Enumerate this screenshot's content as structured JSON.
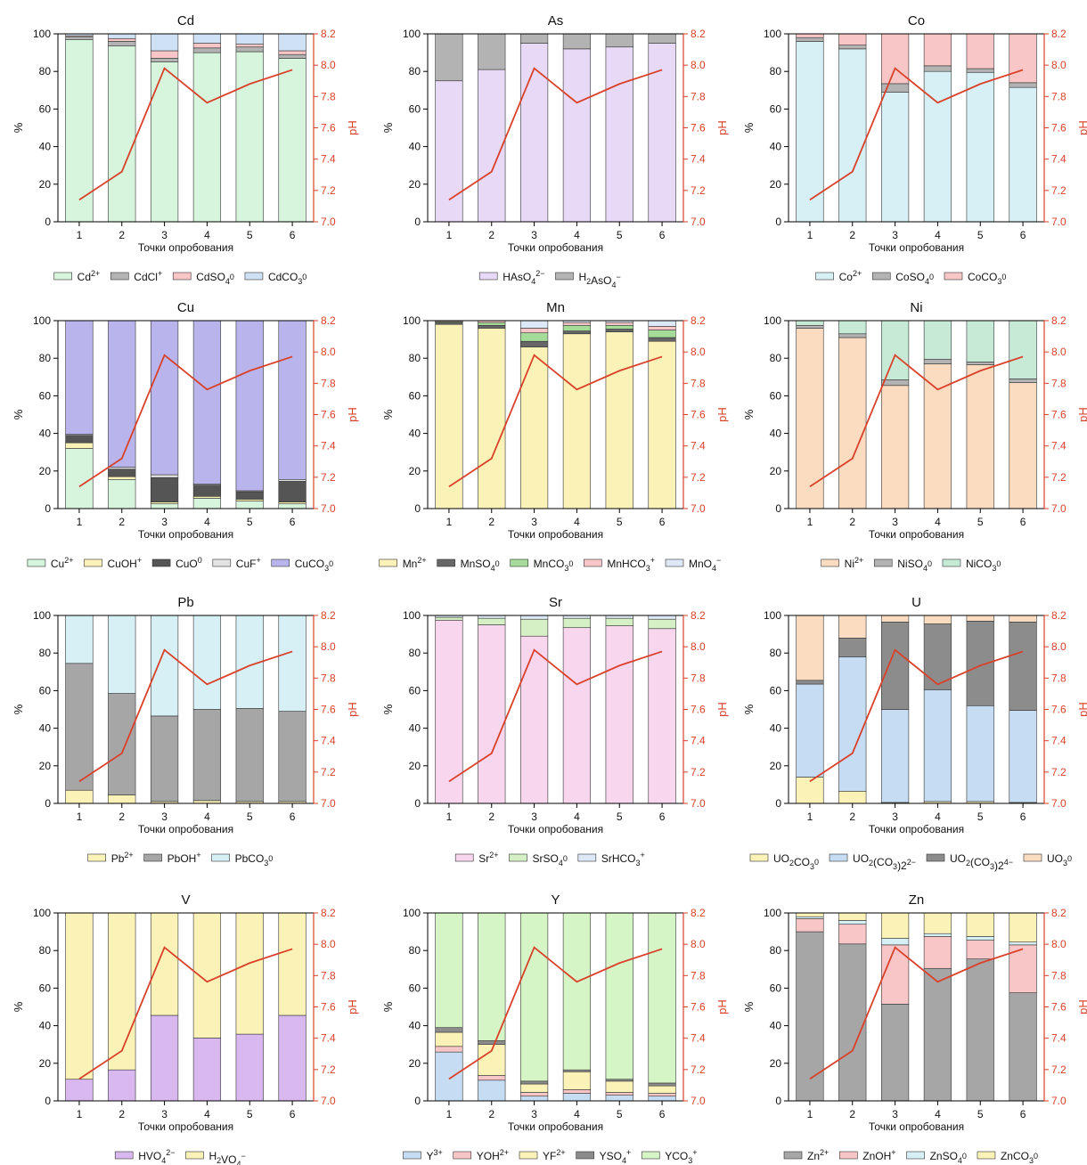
{
  "figure": {
    "x_label": "Точки опробования",
    "y_left_label": "%",
    "y_right_label": "pH",
    "x_ticks": [
      "1",
      "2",
      "3",
      "4",
      "5",
      "6"
    ],
    "y_left_ticks": [
      "0",
      "20",
      "40",
      "60",
      "80",
      "100"
    ],
    "y_right_ticks": [
      "7.0",
      "7.2",
      "7.4",
      "7.6",
      "7.8",
      "8.0",
      "8.2"
    ],
    "ph_color": "#d9412a"
  },
  "chart_data": [
    {
      "type": "bar",
      "stacked": true,
      "title": "Cd",
      "categories": [
        "1",
        "2",
        "3",
        "4",
        "5",
        "6"
      ],
      "ylim": [
        0,
        100
      ],
      "y2lim": [
        7.0,
        8.2
      ],
      "series": [
        {
          "name": "Cd2+",
          "label": [
            "Cd",
            "2+",
            ""
          ],
          "color": "#d6f5dc",
          "values": [
            97,
            93.5,
            85,
            90,
            90.5,
            87
          ]
        },
        {
          "name": "CdCl+",
          "label": [
            "CdCl",
            "+",
            ""
          ],
          "color": "#b3b3b3",
          "values": [
            1.5,
            2.5,
            2,
            2.5,
            2.5,
            2
          ]
        },
        {
          "name": "CdSO40",
          "label": [
            "CdSO",
            "",
            "4"
          ],
          "suffix": "0",
          "color": "#f8c6c6",
          "values": [
            0.5,
            1.5,
            4,
            2.5,
            1.5,
            2
          ]
        },
        {
          "name": "CdCO30",
          "label": [
            "CdCO",
            "",
            "3"
          ],
          "suffix": "0",
          "color": "#cfe2f5",
          "values": [
            1,
            2.5,
            9,
            5,
            5.5,
            9
          ]
        }
      ],
      "ph": [
        7.14,
        7.32,
        7.98,
        7.76,
        7.88,
        7.97
      ]
    },
    {
      "type": "bar",
      "stacked": true,
      "title": "As",
      "categories": [
        "1",
        "2",
        "3",
        "4",
        "5",
        "6"
      ],
      "ylim": [
        0,
        100
      ],
      "y2lim": [
        7.0,
        8.2
      ],
      "series": [
        {
          "name": "HAsO42-",
          "label": [
            "HAsO",
            "2−",
            "4"
          ],
          "color": "#e8d9f7",
          "values": [
            75,
            81,
            95,
            92,
            93,
            95
          ]
        },
        {
          "name": "H2AsO4-",
          "label": [
            "H",
            "",
            "2"
          ],
          "label2": [
            "AsO",
            "−",
            "4"
          ],
          "color": "#b3b3b3",
          "values": [
            25,
            19,
            5,
            8,
            7,
            5
          ]
        }
      ],
      "ph": [
        7.14,
        7.32,
        7.98,
        7.76,
        7.88,
        7.97
      ]
    },
    {
      "type": "bar",
      "stacked": true,
      "title": "Co",
      "categories": [
        "1",
        "2",
        "3",
        "4",
        "5",
        "6"
      ],
      "ylim": [
        0,
        100
      ],
      "y2lim": [
        7.0,
        8.2
      ],
      "series": [
        {
          "name": "Co2+",
          "label": [
            "Co",
            "2+",
            ""
          ],
          "color": "#d6f0f5",
          "values": [
            96,
            92,
            69,
            80,
            79.5,
            71.5
          ]
        },
        {
          "name": "CoSO40",
          "label": [
            "CoSO",
            "",
            "4"
          ],
          "suffix": "0",
          "color": "#b3b3b3",
          "values": [
            2,
            2,
            4.5,
            3,
            2,
            2.5
          ]
        },
        {
          "name": "CoCO30",
          "label": [
            "CoCO",
            "",
            "3"
          ],
          "suffix": "0",
          "color": "#f8c6c6",
          "values": [
            2,
            6,
            26.5,
            17,
            18.5,
            26
          ]
        }
      ],
      "ph": [
        7.14,
        7.32,
        7.98,
        7.76,
        7.88,
        7.97
      ]
    },
    {
      "type": "bar",
      "stacked": true,
      "title": "Cu",
      "categories": [
        "1",
        "2",
        "3",
        "4",
        "5",
        "6"
      ],
      "ylim": [
        0,
        100
      ],
      "y2lim": [
        7.0,
        8.2
      ],
      "series": [
        {
          "name": "Cu2+",
          "label": [
            "Cu",
            "2+",
            ""
          ],
          "color": "#d6f5dc",
          "values": [
            32,
            15.5,
            2.5,
            5.5,
            4,
            2.5
          ]
        },
        {
          "name": "CuOH+",
          "label": [
            "CuOH",
            "+",
            ""
          ],
          "color": "#fbf2b8",
          "values": [
            3,
            1.5,
            1,
            1,
            1,
            1
          ]
        },
        {
          "name": "CuO0",
          "label": [
            "CuO",
            "0",
            ""
          ],
          "color": "#555555",
          "values": [
            4,
            4,
            13,
            6,
            4,
            11
          ]
        },
        {
          "name": "CuF+",
          "label": [
            "CuF",
            "+",
            ""
          ],
          "color": "#e3e3e3",
          "values": [
            0.5,
            1,
            1.5,
            0.5,
            0.5,
            1
          ]
        },
        {
          "name": "CuCO30",
          "label": [
            "CuCO",
            "",
            "3"
          ],
          "suffix": "0",
          "color": "#b9b5ec",
          "values": [
            60.5,
            78,
            82,
            87,
            90.5,
            84.5
          ]
        }
      ],
      "ph": [
        7.14,
        7.32,
        7.98,
        7.76,
        7.88,
        7.97
      ]
    },
    {
      "type": "bar",
      "stacked": true,
      "title": "Mn",
      "categories": [
        "1",
        "2",
        "3",
        "4",
        "5",
        "6"
      ],
      "ylim": [
        0,
        100
      ],
      "y2lim": [
        7.0,
        8.2
      ],
      "series": [
        {
          "name": "Mn2+",
          "label": [
            "Mn",
            "2+",
            ""
          ],
          "color": "#fbf2b8",
          "values": [
            98,
            96,
            86,
            93,
            94,
            89
          ]
        },
        {
          "name": "MnSO40",
          "label": [
            "MnSO",
            "",
            "4"
          ],
          "suffix": "0",
          "color": "#666666",
          "values": [
            1,
            1.5,
            3,
            1.5,
            1.5,
            2
          ]
        },
        {
          "name": "MnCO30",
          "label": [
            "MnCO",
            "",
            "3"
          ],
          "suffix": "0",
          "color": "#a6dc9a",
          "values": [
            0.5,
            1.5,
            4.5,
            3,
            2,
            4
          ]
        },
        {
          "name": "MnHCO3+",
          "label": [
            "MnHCO",
            "+",
            "3"
          ],
          "color": "#f8c6c6",
          "values": [
            0.5,
            1,
            2.5,
            1.5,
            1.5,
            2
          ]
        },
        {
          "name": "MnO4-",
          "label": [
            "MnO",
            "−",
            "4"
          ],
          "color": "#dde8f7",
          "values": [
            0,
            0,
            4,
            1,
            1,
            3
          ]
        }
      ],
      "ph": [
        7.14,
        7.32,
        7.98,
        7.76,
        7.88,
        7.97
      ]
    },
    {
      "type": "bar",
      "stacked": true,
      "title": "Ni",
      "categories": [
        "1",
        "2",
        "3",
        "4",
        "5",
        "6"
      ],
      "ylim": [
        0,
        100
      ],
      "y2lim": [
        7.0,
        8.2
      ],
      "series": [
        {
          "name": "Ni2+",
          "label": [
            "Ni",
            "2+",
            ""
          ],
          "color": "#fbdcc0",
          "values": [
            96,
            91,
            65.5,
            77,
            76.5,
            67
          ]
        },
        {
          "name": "NiSO40",
          "label": [
            "NiSO",
            "",
            "4"
          ],
          "suffix": "0",
          "color": "#b3b3b3",
          "values": [
            1.5,
            2,
            3,
            2.5,
            1.5,
            2
          ]
        },
        {
          "name": "NiCO30",
          "label": [
            "NiCO",
            "",
            "3"
          ],
          "suffix": "0",
          "color": "#c6ead6",
          "values": [
            2.5,
            7,
            31.5,
            20.5,
            22,
            31
          ]
        }
      ],
      "ph": [
        7.14,
        7.32,
        7.98,
        7.76,
        7.88,
        7.97
      ]
    },
    {
      "type": "bar",
      "stacked": true,
      "title": "Pb",
      "categories": [
        "1",
        "2",
        "3",
        "4",
        "5",
        "6"
      ],
      "ylim": [
        0,
        100
      ],
      "y2lim": [
        7.0,
        8.2
      ],
      "series": [
        {
          "name": "Pb2+",
          "label": [
            "Pb",
            "2+",
            ""
          ],
          "color": "#fbf2b8",
          "values": [
            7,
            4.5,
            1,
            1.5,
            1,
            1
          ]
        },
        {
          "name": "PbOH+",
          "label": [
            "PbOH",
            "+",
            ""
          ],
          "color": "#a6a6a6",
          "values": [
            67.5,
            54,
            45.5,
            48.5,
            49.5,
            48
          ]
        },
        {
          "name": "PbCO30",
          "label": [
            "PbCO",
            "",
            "3"
          ],
          "suffix": "0",
          "color": "#d6f0f5",
          "values": [
            25.5,
            41.5,
            53.5,
            50,
            49.5,
            51
          ]
        }
      ],
      "ph": [
        7.14,
        7.32,
        7.98,
        7.76,
        7.88,
        7.97
      ]
    },
    {
      "type": "bar",
      "stacked": true,
      "title": "Sr",
      "categories": [
        "1",
        "2",
        "3",
        "4",
        "5",
        "6"
      ],
      "ylim": [
        0,
        100
      ],
      "y2lim": [
        7.0,
        8.2
      ],
      "series": [
        {
          "name": "Sr2+",
          "label": [
            "Sr",
            "2+",
            ""
          ],
          "color": "#f7d6ee",
          "values": [
            97.5,
            95,
            89,
            93.5,
            94.5,
            93
          ]
        },
        {
          "name": "SrSO40",
          "label": [
            "SrSO",
            "",
            "4"
          ],
          "suffix": "0",
          "color": "#d6f0c6",
          "values": [
            1.5,
            3.5,
            9,
            5,
            4,
            5
          ]
        },
        {
          "name": "SrHCO3+",
          "label": [
            "SrHCO",
            "+",
            "3"
          ],
          "color": "#dde8f7",
          "values": [
            1,
            1.5,
            2,
            1.5,
            1.5,
            2
          ]
        }
      ],
      "ph": [
        7.14,
        7.32,
        7.98,
        7.76,
        7.88,
        7.97
      ]
    },
    {
      "type": "bar",
      "stacked": true,
      "title": "U",
      "categories": [
        "1",
        "2",
        "3",
        "4",
        "5",
        "6"
      ],
      "ylim": [
        0,
        100
      ],
      "y2lim": [
        7.0,
        8.2
      ],
      "series": [
        {
          "name": "UO2CO30",
          "label": [
            "UO",
            "",
            "2"
          ],
          "label2": [
            "CO",
            "",
            "3"
          ],
          "suffix": "0",
          "color": "#fbf2b8",
          "values": [
            14,
            6.5,
            0.5,
            1,
            1,
            0.5
          ]
        },
        {
          "name": "UO2(CO3)22-",
          "label": [
            "UO",
            "",
            "2"
          ],
          "label2": [
            "(CO",
            "",
            "3"
          ],
          "label3": [
            ")2",
            "2−",
            ""
          ],
          "color": "#c6dcf2",
          "values": [
            49.5,
            71.5,
            49.5,
            59.5,
            51,
            49
          ]
        },
        {
          "name": "UO2(CO3)24-",
          "label": [
            "UO",
            "",
            "2"
          ],
          "label2": [
            "(CO",
            "",
            "3"
          ],
          "label3": [
            ")2",
            "4−",
            ""
          ],
          "color": "#8c8c8c",
          "values": [
            2,
            10,
            46.5,
            35,
            45,
            47
          ]
        },
        {
          "name": "UO30",
          "label": [
            "UO",
            "",
            "3"
          ],
          "suffix": "0",
          "color": "#fbdcc0",
          "values": [
            34.5,
            12,
            3.5,
            4.5,
            3,
            3.5
          ]
        }
      ],
      "ph": [
        7.14,
        7.32,
        7.98,
        7.76,
        7.88,
        7.97
      ]
    },
    {
      "type": "bar",
      "stacked": true,
      "title": "V",
      "categories": [
        "1",
        "2",
        "3",
        "4",
        "5",
        "6"
      ],
      "ylim": [
        0,
        100
      ],
      "y2lim": [
        7.0,
        8.2
      ],
      "series": [
        {
          "name": "HVO42-",
          "label": [
            "HVO",
            "2−",
            "4"
          ],
          "color": "#d9b8ef",
          "values": [
            11.5,
            16.5,
            45.5,
            33.5,
            35.5,
            45.5
          ]
        },
        {
          "name": "H2VO4-",
          "label": [
            "H",
            "",
            "2"
          ],
          "label2": [
            "VO",
            "−",
            "4"
          ],
          "color": "#fbf2b8",
          "values": [
            88.5,
            83.5,
            54.5,
            66.5,
            64.5,
            54.5
          ]
        }
      ],
      "ph": [
        7.14,
        7.32,
        7.98,
        7.76,
        7.88,
        7.97
      ]
    },
    {
      "type": "bar",
      "stacked": true,
      "title": "Y",
      "categories": [
        "1",
        "2",
        "3",
        "4",
        "5",
        "6"
      ],
      "ylim": [
        0,
        100
      ],
      "y2lim": [
        7.0,
        8.2
      ],
      "series": [
        {
          "name": "Y3+",
          "label": [
            "Y",
            "3+",
            ""
          ],
          "color": "#c6dcf2",
          "values": [
            26,
            11,
            2.5,
            4,
            3,
            2.5
          ]
        },
        {
          "name": "YOH2+",
          "label": [
            "YOH",
            "2+",
            ""
          ],
          "color": "#f8c6c6",
          "values": [
            3,
            2.5,
            2,
            2,
            1.5,
            1.5
          ]
        },
        {
          "name": "YF2+",
          "label": [
            "YF",
            "2+",
            ""
          ],
          "color": "#fbf2b8",
          "values": [
            7.5,
            16.5,
            4.5,
            9.5,
            6,
            4
          ]
        },
        {
          "name": "YSO4+",
          "label": [
            "YSO",
            "+",
            "4"
          ],
          "color": "#8c8c8c",
          "values": [
            2.5,
            2,
            1.5,
            1,
            1,
            1.5
          ]
        },
        {
          "name": "YCO3+",
          "label": [
            "YCO",
            "+",
            "3"
          ],
          "color": "#d6f5c6",
          "values": [
            61,
            68,
            89.5,
            83.5,
            88.5,
            90.5
          ]
        }
      ],
      "ph": [
        7.14,
        7.32,
        7.98,
        7.76,
        7.88,
        7.97
      ]
    },
    {
      "type": "bar",
      "stacked": true,
      "title": "Zn",
      "categories": [
        "1",
        "2",
        "3",
        "4",
        "5",
        "6"
      ],
      "ylim": [
        0,
        100
      ],
      "y2lim": [
        7.0,
        8.2
      ],
      "series": [
        {
          "name": "Zn2+",
          "label": [
            "Zn",
            "2+",
            ""
          ],
          "color": "#a6a6a6",
          "values": [
            90,
            83.5,
            51.5,
            70.5,
            75.5,
            57.5
          ]
        },
        {
          "name": "ZnOH+",
          "label": [
            "ZnOH",
            "+",
            ""
          ],
          "color": "#f8c6c6",
          "values": [
            7,
            10.5,
            31.5,
            17,
            10,
            25.5
          ]
        },
        {
          "name": "ZnSO40",
          "label": [
            "ZnSO",
            "",
            "4"
          ],
          "suffix": "0",
          "color": "#d6f0f5",
          "values": [
            1,
            2,
            3.5,
            1.5,
            2,
            1.5
          ]
        },
        {
          "name": "ZnCO30",
          "label": [
            "ZnCO",
            "",
            "3"
          ],
          "suffix": "0",
          "color": "#fbf2b8",
          "values": [
            2,
            4,
            13.5,
            11,
            12.5,
            15.5
          ]
        }
      ],
      "ph": [
        7.14,
        7.32,
        7.98,
        7.76,
        7.88,
        7.97
      ]
    }
  ]
}
